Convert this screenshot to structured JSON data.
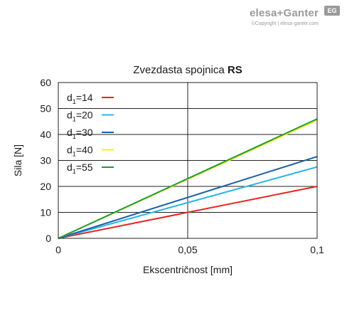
{
  "brand": {
    "logo": "elesa+Ganter",
    "badge": "EG",
    "copyright": "©Copyright | elesa-ganter.com"
  },
  "chart_data": {
    "type": "line",
    "title": "Zvezdasta spojnica",
    "title_bold": "RS",
    "xlabel": "Ekscentričnost [mm]",
    "ylabel": "Sila [N]",
    "xlim": [
      0,
      0.1
    ],
    "ylim": [
      0,
      60
    ],
    "x_ticks": [
      {
        "value": 0,
        "label": "0"
      },
      {
        "value": 0.05,
        "label": "0,05"
      },
      {
        "value": 0.1,
        "label": "0,1"
      }
    ],
    "y_ticks": [
      {
        "value": 0,
        "label": "0"
      },
      {
        "value": 10,
        "label": "10"
      },
      {
        "value": 20,
        "label": "20"
      },
      {
        "value": 30,
        "label": "30"
      },
      {
        "value": 40,
        "label": "40"
      },
      {
        "value": 50,
        "label": "50"
      },
      {
        "value": 60,
        "label": "60"
      }
    ],
    "grid": true,
    "legend_position": "top-left",
    "series": [
      {
        "name": "d1=14",
        "base": "d",
        "sub": "1",
        "rest": "=14",
        "color": "#e8231f",
        "x": [
          0,
          0.1
        ],
        "y": [
          0,
          20
        ]
      },
      {
        "name": "d1=20",
        "base": "d",
        "sub": "1",
        "rest": "=20",
        "color": "#29b5e8",
        "x": [
          0,
          0.1
        ],
        "y": [
          0,
          27.5
        ]
      },
      {
        "name": "d1=30",
        "base": "d",
        "sub": "1",
        "rest": "=30",
        "color": "#1d5fa8",
        "x": [
          0,
          0.1
        ],
        "y": [
          0,
          31.5
        ]
      },
      {
        "name": "d1=40",
        "base": "d",
        "sub": "1",
        "rest": "=40",
        "color": "#f2f21a",
        "x": [
          0,
          0.1
        ],
        "y": [
          0,
          45.5
        ]
      },
      {
        "name": "d1=55",
        "base": "d",
        "sub": "1",
        "rest": "=55",
        "color": "#1f9a3c",
        "x": [
          0,
          0.1
        ],
        "y": [
          0,
          46
        ]
      }
    ]
  }
}
